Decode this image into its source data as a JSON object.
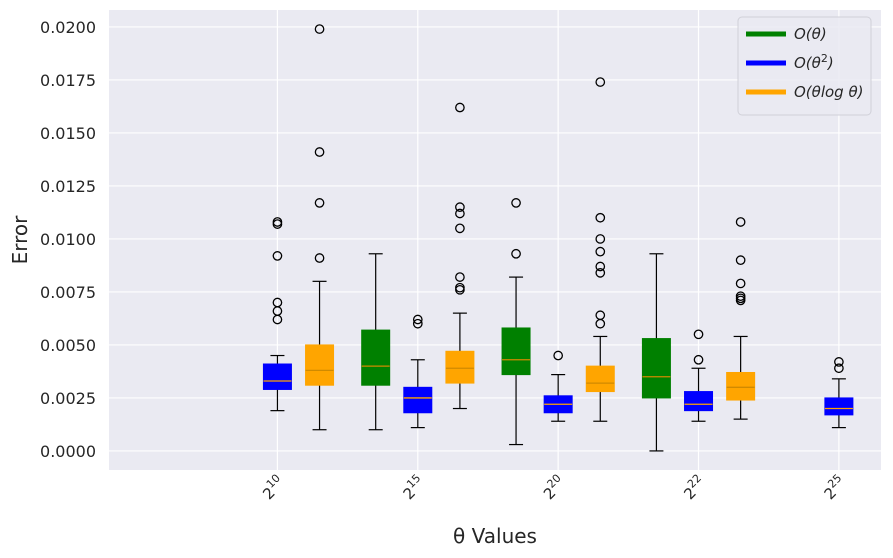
{
  "chart_data": {
    "type": "boxplot",
    "title": "",
    "xlabel": "θ Values",
    "ylabel": "Error",
    "ylim": [
      -0.0009,
      0.0208
    ],
    "yticks": [
      0.0,
      0.0025,
      0.005,
      0.0075,
      0.01,
      0.0125,
      0.015,
      0.0175,
      0.02
    ],
    "ytick_labels": [
      "0.0000",
      "0.0025",
      "0.0050",
      "0.0075",
      "0.0100",
      "0.0125",
      "0.0150",
      "0.0175",
      "0.0200"
    ],
    "xlim": [
      -3.2,
      2.3
    ],
    "categories": [
      {
        "label": "2^10",
        "base": "2",
        "exp": "10",
        "x": -2.0
      },
      {
        "label": "2^15",
        "base": "2",
        "exp": "15",
        "x": -1.0
      },
      {
        "label": "2^20",
        "base": "2",
        "exp": "20",
        "x": 0.0
      },
      {
        "label": "2^22",
        "base": "2",
        "exp": "22",
        "x": 1.0
      },
      {
        "label": "2^25",
        "base": "2",
        "exp": "25",
        "x": 2.0
      }
    ],
    "grid": true,
    "legend_position": "top-right",
    "legend": [
      {
        "name": "O(θ)",
        "color": "#008000",
        "base": "O(θ)",
        "sup": ""
      },
      {
        "name": "O(θ^2)",
        "color": "#0000ff",
        "base": "O(θ",
        "sup": "2",
        "tail": ")"
      },
      {
        "name": "O(θ log θ)",
        "color": "#ffa500",
        "base": "O(θlog θ)",
        "sup": ""
      }
    ],
    "series": [
      {
        "name": "O(θ)",
        "color": "#008000",
        "boxes": [
          {
            "x": -1.3,
            "whislo": 0.001,
            "q1": 0.0031,
            "med": 0.004,
            "q3": 0.0057,
            "whishi": 0.0093,
            "fliers": []
          },
          {
            "x": -0.3,
            "whislo": 0.0003,
            "q1": 0.0036,
            "med": 0.0043,
            "q3": 0.0058,
            "whishi": 0.0082,
            "fliers": [
              0.0117,
              0.0093
            ]
          },
          {
            "x": 0.7,
            "whislo": 0.0,
            "q1": 0.0025,
            "med": 0.0035,
            "q3": 0.0053,
            "whishi": 0.0093,
            "fliers": []
          }
        ]
      },
      {
        "name": "O(θ^2)",
        "color": "#0000ff",
        "boxes": [
          {
            "x": -2.0,
            "whislo": 0.0019,
            "q1": 0.0029,
            "med": 0.0033,
            "q3": 0.0041,
            "whishi": 0.0045,
            "fliers": [
              0.0108,
              0.0107,
              0.0092,
              0.007,
              0.0066,
              0.0062
            ]
          },
          {
            "x": -1.0,
            "whislo": 0.0011,
            "q1": 0.0018,
            "med": 0.0025,
            "q3": 0.003,
            "whishi": 0.0043,
            "fliers": [
              0.0062,
              0.006
            ]
          },
          {
            "x": 0.0,
            "whislo": 0.0014,
            "q1": 0.0018,
            "med": 0.0022,
            "q3": 0.0026,
            "whishi": 0.0036,
            "fliers": [
              0.0045
            ]
          },
          {
            "x": 1.0,
            "whislo": 0.0014,
            "q1": 0.0019,
            "med": 0.0022,
            "q3": 0.0028,
            "whishi": 0.0039,
            "fliers": [
              0.0055,
              0.0043
            ]
          },
          {
            "x": 2.0,
            "whislo": 0.0011,
            "q1": 0.0017,
            "med": 0.002,
            "q3": 0.0025,
            "whishi": 0.0034,
            "fliers": [
              0.0042,
              0.0039
            ]
          }
        ]
      },
      {
        "name": "O(θ log θ)",
        "color": "#ffa500",
        "boxes": [
          {
            "x": -1.7,
            "whislo": 0.001,
            "q1": 0.0031,
            "med": 0.0038,
            "q3": 0.005,
            "whishi": 0.008,
            "fliers": [
              0.0199,
              0.0141,
              0.0117,
              0.0091
            ]
          },
          {
            "x": -0.7,
            "whislo": 0.002,
            "q1": 0.0032,
            "med": 0.0039,
            "q3": 0.0047,
            "whishi": 0.0065,
            "fliers": [
              0.0162,
              0.0115,
              0.0112,
              0.0105,
              0.0082,
              0.0077,
              0.0076
            ]
          },
          {
            "x": 0.3,
            "whislo": 0.0014,
            "q1": 0.0028,
            "med": 0.0032,
            "q3": 0.004,
            "whishi": 0.0054,
            "fliers": [
              0.0174,
              0.011,
              0.01,
              0.0094,
              0.0087,
              0.0084,
              0.0064,
              0.006
            ]
          },
          {
            "x": 1.3,
            "whislo": 0.0015,
            "q1": 0.0024,
            "med": 0.003,
            "q3": 0.0037,
            "whishi": 0.0054,
            "fliers": [
              0.0108,
              0.009,
              0.0079,
              0.0073,
              0.0072,
              0.0071
            ]
          }
        ]
      }
    ]
  }
}
